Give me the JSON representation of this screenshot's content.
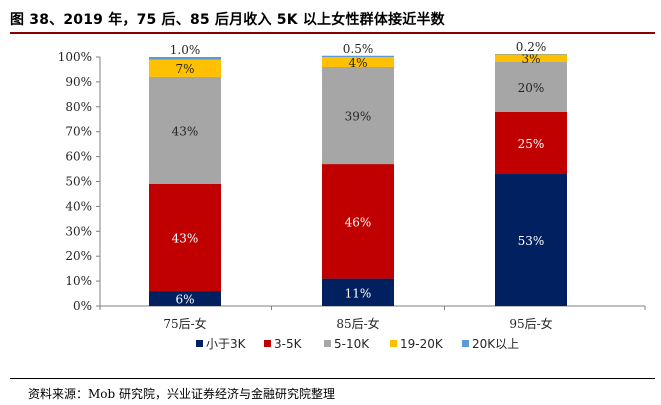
{
  "header": {
    "title": "图 38、2019 年，75 后、85 后月收入 5K 以上女性群体接近半数"
  },
  "source": "资料来源：Mob 研究院，兴业证券经济与金融研究院整理",
  "chart_data": {
    "type": "bar",
    "stacked": true,
    "categories": [
      "75后-女",
      "85后-女",
      "95后-女"
    ],
    "series": [
      {
        "name": "小于3K",
        "color": "#002060",
        "values": [
          6,
          11,
          53
        ],
        "labels": [
          "6%",
          "11%",
          "53%"
        ],
        "label_color": "#ffffff"
      },
      {
        "name": "3-5K",
        "color": "#C00000",
        "values": [
          43,
          46,
          25
        ],
        "labels": [
          "43%",
          "46%",
          "25%"
        ],
        "label_color": "#ffffff"
      },
      {
        "name": "5-10K",
        "color": "#A6A6A6",
        "values": [
          43,
          39,
          20
        ],
        "labels": [
          "43%",
          "39%",
          "20%"
        ],
        "label_color": "#262626"
      },
      {
        "name": "19-20K",
        "color": "#FFC000",
        "values": [
          7,
          4,
          3
        ],
        "labels": [
          "7%",
          "4%",
          "3%"
        ],
        "label_color": "#262626"
      },
      {
        "name": "20K以上",
        "color": "#5B9BD5",
        "values": [
          1.0,
          0.5,
          0.2
        ],
        "labels": [
          "1.0%",
          "0.5%",
          "0.2%"
        ],
        "label_color": "#262626"
      }
    ],
    "y_ticks": [
      "0%",
      "10%",
      "20%",
      "30%",
      "40%",
      "50%",
      "60%",
      "70%",
      "80%",
      "90%",
      "100%"
    ],
    "ylim": [
      0,
      100
    ],
    "grid": false,
    "legend_position": "bottom"
  }
}
